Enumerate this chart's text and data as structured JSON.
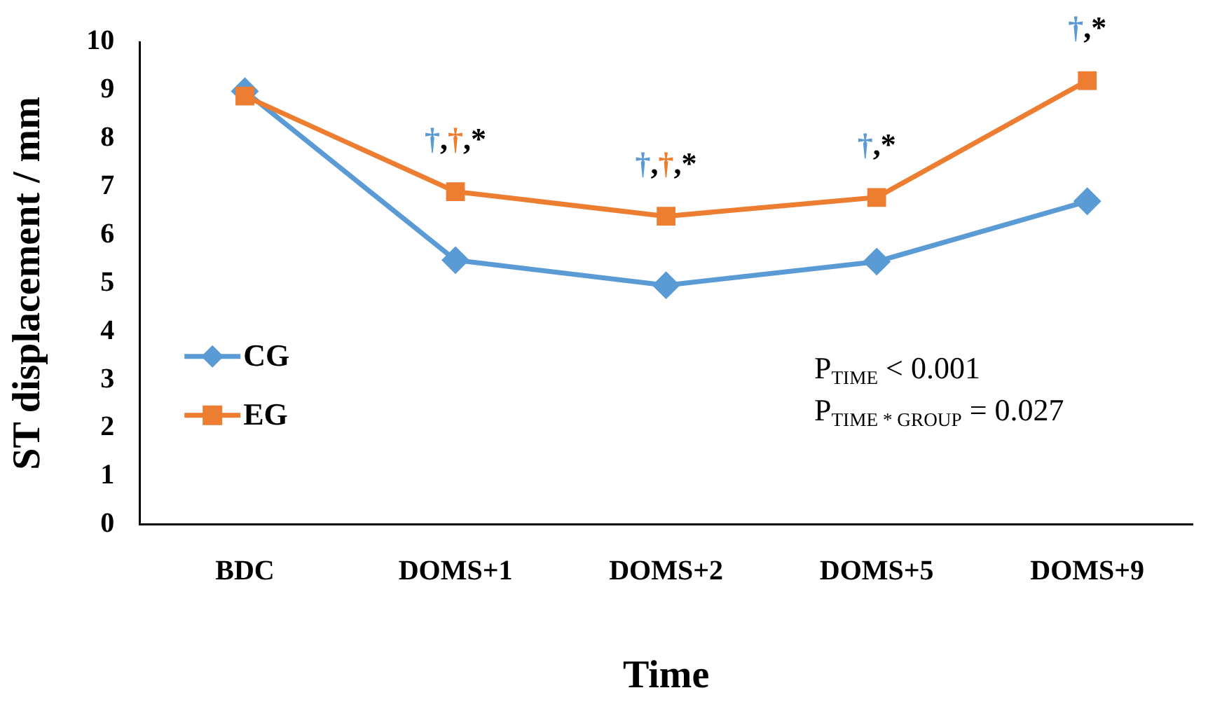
{
  "chart_data": {
    "type": "line",
    "xlabel": "Time",
    "ylabel": "ST displacement / mm",
    "categories": [
      "BDC",
      "DOMS+1",
      "DOMS+2",
      "DOMS+5",
      "DOMS+9"
    ],
    "series": [
      {
        "name": "CG",
        "color": "#5b9bd5",
        "marker": "diamond",
        "values": [
          8.98,
          5.48,
          4.96,
          5.45,
          6.7
        ]
      },
      {
        "name": "EG",
        "color": "#ed7d31",
        "marker": "square",
        "values": [
          8.88,
          6.9,
          6.39,
          6.78,
          9.2
        ]
      }
    ],
    "ylim": [
      0,
      10
    ],
    "yticks": [
      0,
      1,
      2,
      3,
      4,
      5,
      6,
      7,
      8,
      9,
      10
    ],
    "grid": false,
    "legend": "bottom left",
    "annotations": [
      {
        "text": "†,†,*",
        "x": "DOMS+1",
        "y": 6.9
      },
      {
        "text": "†,†,*",
        "x": "DOMS+2",
        "y": 6.39
      },
      {
        "text": "†,*",
        "x": "DOMS+5",
        "y": 6.78
      },
      {
        "text": "†,*",
        "x": "DOMS+9",
        "y": 9.2
      },
      "P$_{TIME}$ < 0.001",
      "P$_{TIME * GROUP}$ = 0.027"
    ]
  }
}
